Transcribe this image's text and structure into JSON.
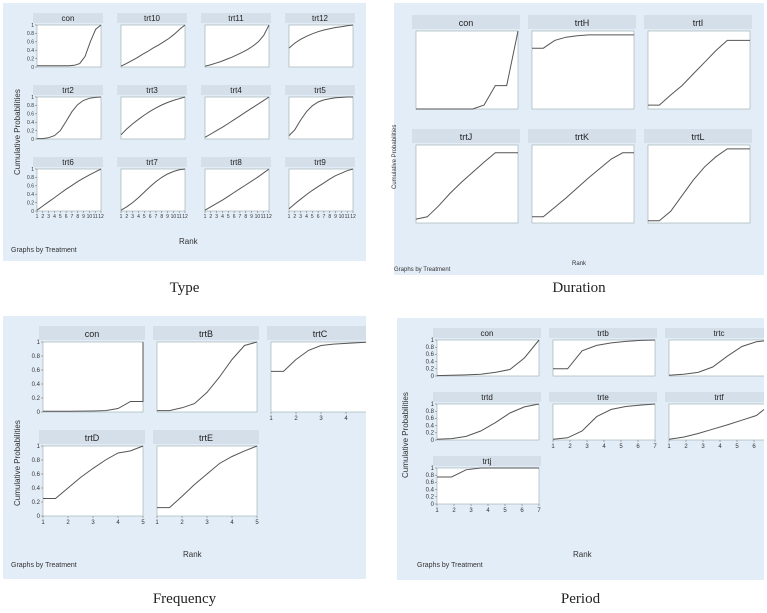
{
  "captions": {
    "type": "Type",
    "duration": "Duration",
    "frequency": "Frequency",
    "period": "Period"
  },
  "axis": {
    "ylabel": "Cumulative Probabilities",
    "xlabel": "Rank",
    "note": "Graphs by Treatment"
  },
  "colors": {
    "panel_bg": "#e3edf7",
    "header_bg": "#d5dfe9",
    "plot_bg": "#ffffff",
    "line": "#555555"
  },
  "chart_data": [
    {
      "type": "line",
      "name": "Type",
      "ylim": [
        0,
        1
      ],
      "xticks": [
        1,
        2,
        3,
        4,
        5,
        6,
        7,
        8,
        9,
        10,
        11,
        12
      ],
      "yticks": [
        0,
        0.2,
        0.4,
        0.6,
        0.8,
        1
      ],
      "series": [
        {
          "name": "con",
          "values": [
            0.03,
            0.03,
            0.03,
            0.03,
            0.03,
            0.03,
            0.03,
            0.04,
            0.08,
            0.25,
            0.6,
            0.9,
            1
          ]
        },
        {
          "name": "trt10",
          "values": [
            0.02,
            0.08,
            0.15,
            0.22,
            0.3,
            0.37,
            0.45,
            0.52,
            0.6,
            0.68,
            0.78,
            0.9,
            1
          ]
        },
        {
          "name": "trt11",
          "values": [
            0.02,
            0.05,
            0.09,
            0.13,
            0.18,
            0.23,
            0.29,
            0.35,
            0.42,
            0.5,
            0.6,
            0.75,
            1
          ]
        },
        {
          "name": "trt12",
          "values": [
            0.45,
            0.57,
            0.66,
            0.73,
            0.79,
            0.84,
            0.88,
            0.91,
            0.94,
            0.96,
            0.98,
            1
          ]
        },
        {
          "name": "trt2",
          "values": [
            0.01,
            0.01,
            0.03,
            0.08,
            0.2,
            0.42,
            0.65,
            0.82,
            0.92,
            0.97,
            0.99,
            1
          ]
        },
        {
          "name": "trt3",
          "values": [
            0.1,
            0.24,
            0.36,
            0.47,
            0.57,
            0.66,
            0.74,
            0.81,
            0.87,
            0.92,
            0.96,
            1
          ]
        },
        {
          "name": "trt4",
          "values": [
            0.04,
            0.12,
            0.2,
            0.28,
            0.37,
            0.46,
            0.55,
            0.64,
            0.73,
            0.82,
            0.91,
            1
          ]
        },
        {
          "name": "trt5",
          "values": [
            0.08,
            0.22,
            0.45,
            0.65,
            0.79,
            0.88,
            0.93,
            0.96,
            0.98,
            0.99,
            1,
            1
          ]
        },
        {
          "name": "trt6",
          "values": [
            0.02,
            0.12,
            0.22,
            0.32,
            0.42,
            0.52,
            0.61,
            0.7,
            0.78,
            0.86,
            0.93,
            1
          ]
        },
        {
          "name": "trt7",
          "values": [
            0.02,
            0.1,
            0.2,
            0.32,
            0.45,
            0.58,
            0.7,
            0.8,
            0.88,
            0.94,
            0.98,
            1
          ]
        },
        {
          "name": "trt8",
          "values": [
            0.02,
            0.1,
            0.18,
            0.26,
            0.35,
            0.44,
            0.53,
            0.62,
            0.71,
            0.8,
            0.9,
            1
          ]
        },
        {
          "name": "trt9",
          "values": [
            0.05,
            0.17,
            0.28,
            0.39,
            0.49,
            0.58,
            0.67,
            0.76,
            0.84,
            0.9,
            0.96,
            1
          ]
        }
      ]
    },
    {
      "type": "line",
      "name": "Duration",
      "ylim": [
        0,
        1
      ],
      "xticks": [],
      "yticks": [],
      "series": [
        {
          "name": "con",
          "values": [
            0,
            0,
            0,
            0,
            0,
            0,
            0.05,
            0.3,
            0.3,
            1
          ]
        },
        {
          "name": "trtH",
          "values": [
            0.78,
            0.78,
            0.88,
            0.92,
            0.94,
            0.95,
            0.95,
            0.95,
            0.95,
            0.95
          ]
        },
        {
          "name": "trtI",
          "values": [
            0.05,
            0.05,
            0.18,
            0.3,
            0.45,
            0.6,
            0.75,
            0.88,
            0.88,
            0.88
          ]
        },
        {
          "name": "trtJ",
          "values": [
            0.05,
            0.08,
            0.22,
            0.38,
            0.52,
            0.65,
            0.78,
            0.9,
            0.9,
            0.9
          ]
        },
        {
          "name": "trtK",
          "values": [
            0.08,
            0.08,
            0.2,
            0.32,
            0.45,
            0.58,
            0.7,
            0.82,
            0.9,
            0.9
          ]
        },
        {
          "name": "trtL",
          "values": [
            0.03,
            0.03,
            0.15,
            0.35,
            0.55,
            0.72,
            0.85,
            0.95,
            0.95,
            0.95
          ]
        }
      ]
    },
    {
      "type": "line",
      "name": "Frequency",
      "ylim": [
        0,
        1
      ],
      "xticks": [
        1,
        2,
        3,
        4,
        5
      ],
      "yticks": [
        0,
        0.2,
        0.4,
        0.6,
        0.8,
        1
      ],
      "series": [
        {
          "name": "con",
          "x": [
            1,
            2,
            3,
            3.5,
            4,
            4.5,
            5,
            5
          ],
          "values": [
            0.01,
            0.01,
            0.015,
            0.02,
            0.05,
            0.15,
            0.15,
            1
          ]
        },
        {
          "name": "trtB",
          "x": [
            1,
            1.5,
            2,
            2.5,
            3,
            3.5,
            4,
            4.5,
            5
          ],
          "values": [
            0.02,
            0.02,
            0.06,
            0.12,
            0.28,
            0.5,
            0.75,
            0.95,
            1
          ]
        },
        {
          "name": "trtC",
          "x": [
            1,
            1.5,
            2,
            2.5,
            3,
            3.5,
            4,
            5
          ],
          "values": [
            0.58,
            0.58,
            0.75,
            0.88,
            0.95,
            0.97,
            0.98,
            1
          ]
        },
        {
          "name": "trtD",
          "x": [
            1,
            1.5,
            2,
            2.5,
            3,
            3.5,
            4,
            4.5,
            5
          ],
          "values": [
            0.25,
            0.25,
            0.4,
            0.55,
            0.68,
            0.8,
            0.9,
            0.93,
            1
          ]
        },
        {
          "name": "trtE",
          "x": [
            1,
            1.5,
            2,
            2.5,
            3,
            3.5,
            4,
            4.5,
            5
          ],
          "values": [
            0.12,
            0.12,
            0.28,
            0.45,
            0.6,
            0.75,
            0.85,
            0.93,
            1
          ]
        }
      ]
    },
    {
      "type": "line",
      "name": "Period",
      "ylim": [
        0,
        1
      ],
      "xticks": [
        1,
        2,
        3,
        4,
        5,
        6,
        7
      ],
      "yticks": [
        0,
        0.2,
        0.4,
        0.6,
        0.8,
        1
      ],
      "series": [
        {
          "name": "con",
          "values": [
            0.01,
            0.02,
            0.03,
            0.05,
            0.1,
            0.18,
            0.5,
            1
          ]
        },
        {
          "name": "trtb",
          "values": [
            0.2,
            0.2,
            0.7,
            0.85,
            0.92,
            0.96,
            0.99,
            1
          ]
        },
        {
          "name": "trtc",
          "values": [
            0.02,
            0.05,
            0.1,
            0.25,
            0.55,
            0.82,
            0.95,
            1
          ]
        },
        {
          "name": "trtd",
          "values": [
            0.02,
            0.04,
            0.1,
            0.25,
            0.48,
            0.75,
            0.92,
            1
          ]
        },
        {
          "name": "trte",
          "values": [
            0.02,
            0.06,
            0.25,
            0.65,
            0.85,
            0.93,
            0.97,
            1
          ]
        },
        {
          "name": "trtf",
          "values": [
            0.02,
            0.08,
            0.18,
            0.3,
            0.42,
            0.55,
            0.68,
            1
          ]
        },
        {
          "name": "trtj",
          "values": [
            0.75,
            0.75,
            0.95,
            1,
            1,
            1,
            1,
            1
          ]
        }
      ]
    }
  ]
}
